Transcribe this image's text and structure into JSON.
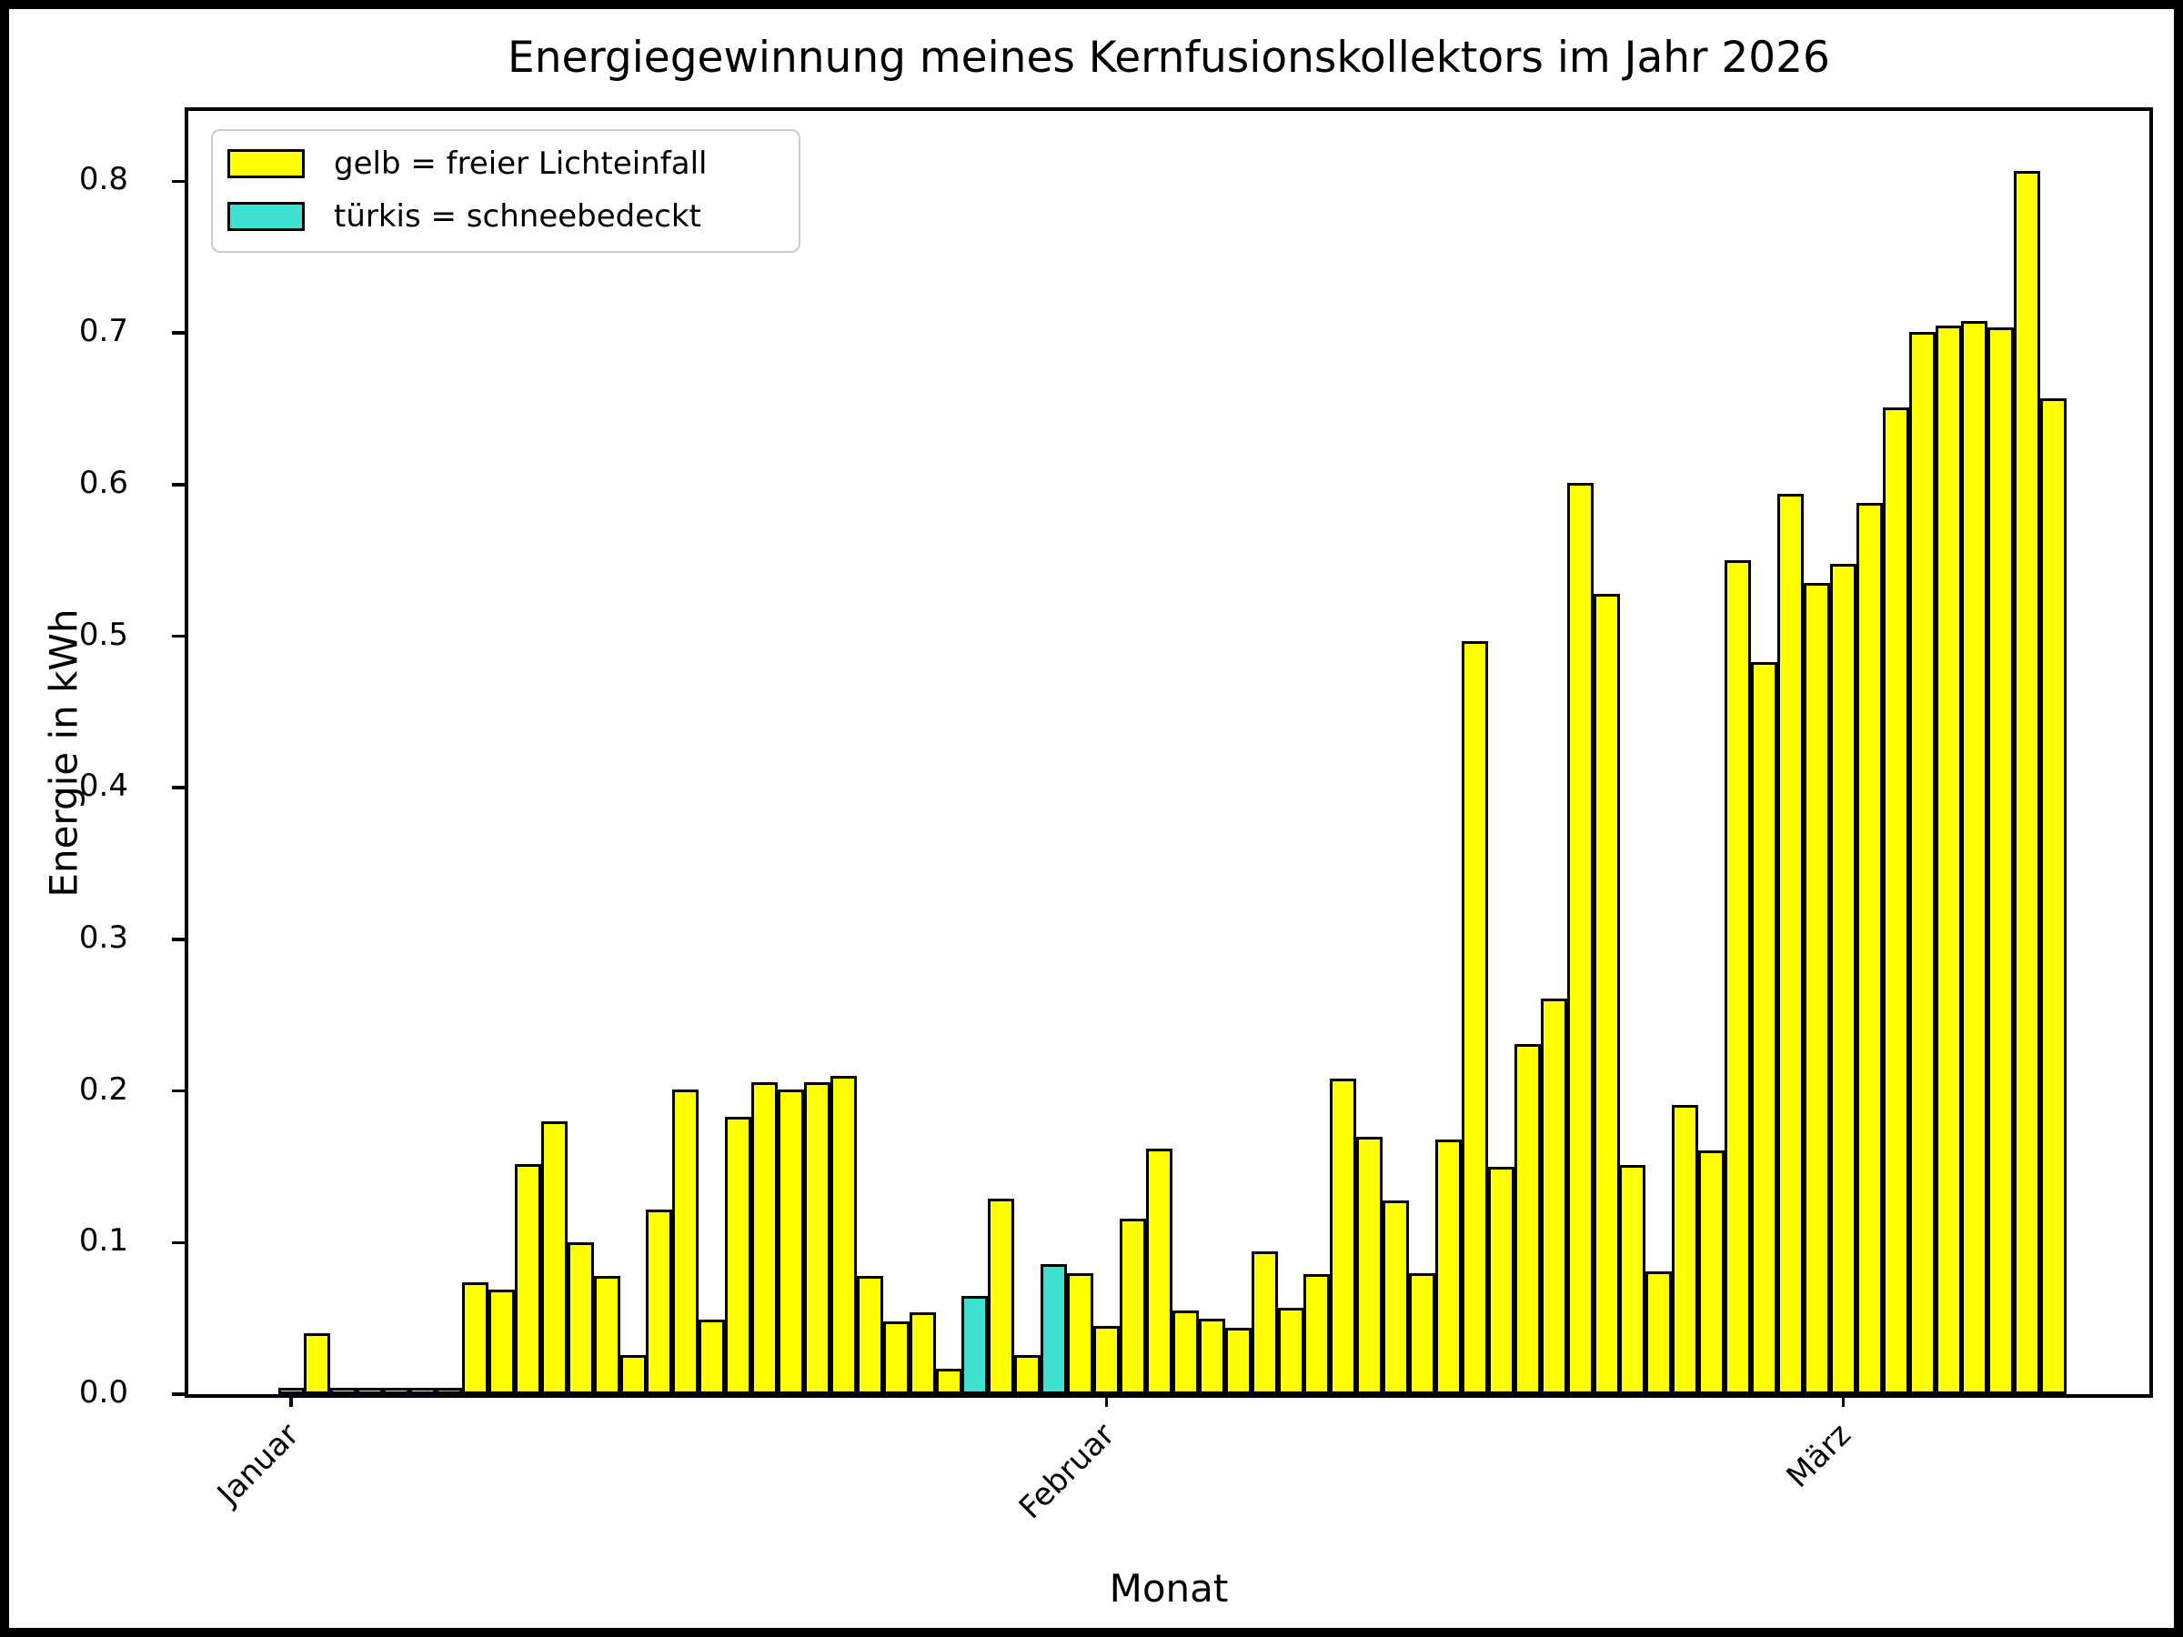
{
  "title": "Energiegewinnung meines Kernfusionskollektors im Jahr 2026",
  "xlabel": "Monat",
  "ylabel": "Energie in kWh",
  "legend": {
    "items": [
      {
        "label": "gelb = freier Lichteinfall",
        "color": "#ffff00"
      },
      {
        "label": "türkis = schneebedeckt",
        "color": "#40e0d0"
      }
    ]
  },
  "colors": {
    "free_light": "#ffff00",
    "snow_covered": "#40e0d0",
    "edge": "#000000",
    "background": "#ffffff"
  },
  "chart_data": {
    "type": "bar",
    "title": "Energiegewinnung meines Kernfusionskollektors im Jahr 2026",
    "xlabel": "Monat",
    "ylabel": "Energie in kWh",
    "ylim": [
      0.0,
      0.8464
    ],
    "grid": false,
    "legend_position": "upper left",
    "y_tick_labels": [
      "0.0",
      "0.1",
      "0.2",
      "0.3",
      "0.4",
      "0.5",
      "0.6",
      "0.7",
      "0.8"
    ],
    "x_ticks": [
      {
        "label": "Januar",
        "day_index": 0
      },
      {
        "label": "Februar",
        "day_index": 31
      },
      {
        "label": "März",
        "day_index": 59
      }
    ],
    "series_legend": {
      "yellow": "freier Lichteinfall",
      "turquoise": "schneebedeckt"
    },
    "days": [
      {
        "date": "2026-01-01",
        "value": 0.002,
        "snow": false
      },
      {
        "date": "2026-01-02",
        "value": 0.04,
        "snow": false
      },
      {
        "date": "2026-01-03",
        "value": 0.001,
        "snow": false
      },
      {
        "date": "2026-01-04",
        "value": 0.001,
        "snow": false
      },
      {
        "date": "2026-01-05",
        "value": 0.003,
        "snow": false
      },
      {
        "date": "2026-01-06",
        "value": 0.001,
        "snow": false
      },
      {
        "date": "2026-01-07",
        "value": 0.004,
        "snow": true
      },
      {
        "date": "2026-01-08",
        "value": 0.074,
        "snow": false
      },
      {
        "date": "2026-01-09",
        "value": 0.069,
        "snow": false
      },
      {
        "date": "2026-01-10",
        "value": 0.152,
        "snow": false
      },
      {
        "date": "2026-01-11",
        "value": 0.18,
        "snow": false
      },
      {
        "date": "2026-01-12",
        "value": 0.1,
        "snow": false
      },
      {
        "date": "2026-01-13",
        "value": 0.078,
        "snow": false
      },
      {
        "date": "2026-01-14",
        "value": 0.026,
        "snow": false
      },
      {
        "date": "2026-01-15",
        "value": 0.122,
        "snow": false
      },
      {
        "date": "2026-01-16",
        "value": 0.201,
        "snow": false
      },
      {
        "date": "2026-01-17",
        "value": 0.049,
        "snow": false
      },
      {
        "date": "2026-01-18",
        "value": 0.183,
        "snow": false
      },
      {
        "date": "2026-01-19",
        "value": 0.206,
        "snow": false
      },
      {
        "date": "2026-01-20",
        "value": 0.201,
        "snow": false
      },
      {
        "date": "2026-01-21",
        "value": 0.206,
        "snow": false
      },
      {
        "date": "2026-01-22",
        "value": 0.21,
        "snow": false
      },
      {
        "date": "2026-01-23",
        "value": 0.078,
        "snow": false
      },
      {
        "date": "2026-01-24",
        "value": 0.048,
        "snow": false
      },
      {
        "date": "2026-01-25",
        "value": 0.054,
        "snow": false
      },
      {
        "date": "2026-01-26",
        "value": 0.017,
        "snow": false
      },
      {
        "date": "2026-01-27",
        "value": 0.065,
        "snow": true
      },
      {
        "date": "2026-01-28",
        "value": 0.129,
        "snow": false
      },
      {
        "date": "2026-01-29",
        "value": 0.026,
        "snow": false
      },
      {
        "date": "2026-01-30",
        "value": 0.086,
        "snow": true
      },
      {
        "date": "2026-01-31",
        "value": 0.08,
        "snow": false
      },
      {
        "date": "2026-02-01",
        "value": 0.045,
        "snow": false
      },
      {
        "date": "2026-02-02",
        "value": 0.116,
        "snow": false
      },
      {
        "date": "2026-02-03",
        "value": 0.162,
        "snow": false
      },
      {
        "date": "2026-02-04",
        "value": 0.055,
        "snow": false
      },
      {
        "date": "2026-02-05",
        "value": 0.05,
        "snow": false
      },
      {
        "date": "2026-02-06",
        "value": 0.044,
        "snow": false
      },
      {
        "date": "2026-02-07",
        "value": 0.094,
        "snow": false
      },
      {
        "date": "2026-02-08",
        "value": 0.057,
        "snow": false
      },
      {
        "date": "2026-02-09",
        "value": 0.079,
        "snow": false
      },
      {
        "date": "2026-02-10",
        "value": 0.208,
        "snow": false
      },
      {
        "date": "2026-02-11",
        "value": 0.17,
        "snow": false
      },
      {
        "date": "2026-02-12",
        "value": 0.128,
        "snow": false
      },
      {
        "date": "2026-02-13",
        "value": 0.08,
        "snow": false
      },
      {
        "date": "2026-02-14",
        "value": 0.168,
        "snow": false
      },
      {
        "date": "2026-02-15",
        "value": 0.497,
        "snow": false
      },
      {
        "date": "2026-02-16",
        "value": 0.15,
        "snow": false
      },
      {
        "date": "2026-02-17",
        "value": 0.231,
        "snow": false
      },
      {
        "date": "2026-02-18",
        "value": 0.261,
        "snow": false
      },
      {
        "date": "2026-02-19",
        "value": 0.601,
        "snow": false
      },
      {
        "date": "2026-02-20",
        "value": 0.528,
        "snow": false
      },
      {
        "date": "2026-02-21",
        "value": 0.151,
        "snow": false
      },
      {
        "date": "2026-02-22",
        "value": 0.081,
        "snow": false
      },
      {
        "date": "2026-02-23",
        "value": 0.191,
        "snow": false
      },
      {
        "date": "2026-02-24",
        "value": 0.161,
        "snow": false
      },
      {
        "date": "2026-02-25",
        "value": 0.55,
        "snow": false
      },
      {
        "date": "2026-02-26",
        "value": 0.483,
        "snow": false
      },
      {
        "date": "2026-02-27",
        "value": 0.594,
        "snow": false
      },
      {
        "date": "2026-02-28",
        "value": 0.535,
        "snow": false
      },
      {
        "date": "2026-03-01",
        "value": 0.548,
        "snow": false
      },
      {
        "date": "2026-03-02",
        "value": 0.588,
        "snow": false
      },
      {
        "date": "2026-03-03",
        "value": 0.651,
        "snow": false
      },
      {
        "date": "2026-03-04",
        "value": 0.701,
        "snow": false
      },
      {
        "date": "2026-03-05",
        "value": 0.705,
        "snow": false
      },
      {
        "date": "2026-03-06",
        "value": 0.708,
        "snow": false
      },
      {
        "date": "2026-03-07",
        "value": 0.704,
        "snow": false
      },
      {
        "date": "2026-03-08",
        "value": 0.807,
        "snow": false
      },
      {
        "date": "2026-03-09",
        "value": 0.657,
        "snow": false
      }
    ]
  }
}
